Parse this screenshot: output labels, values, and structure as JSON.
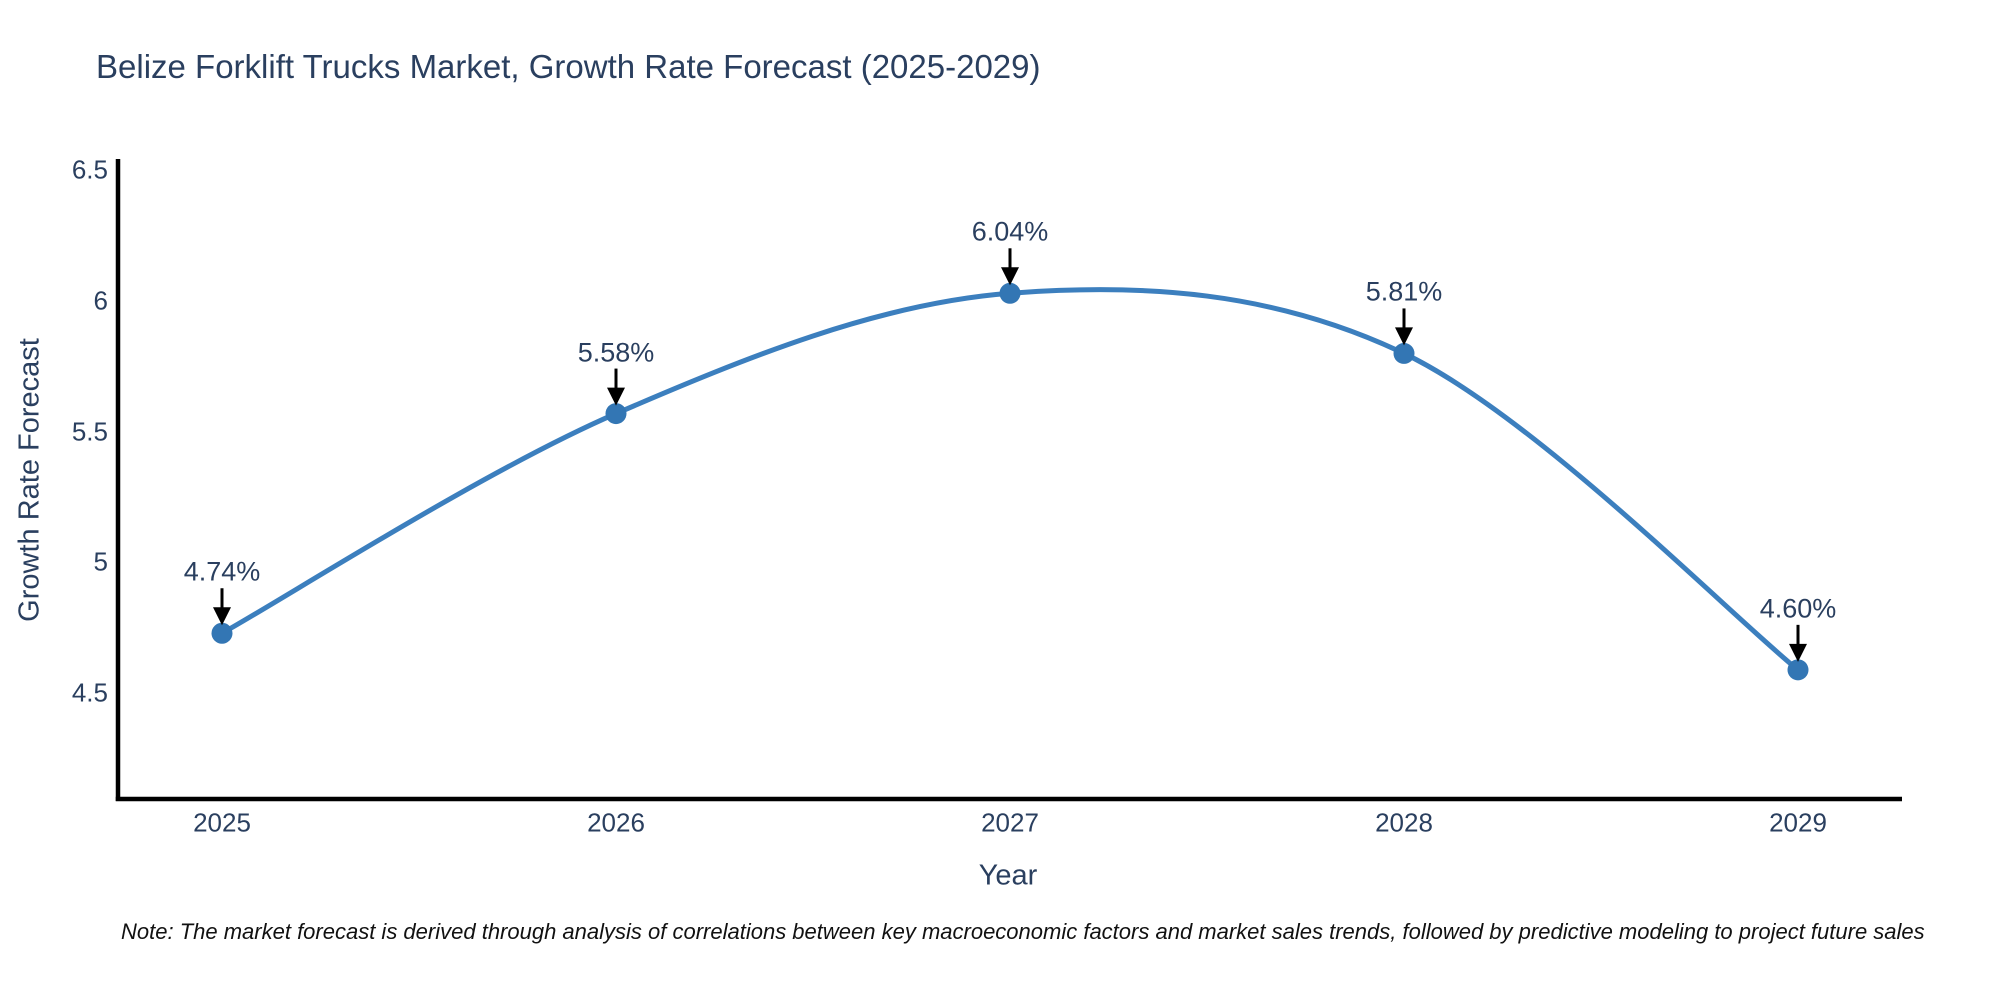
{
  "title": "Belize Forklift Trucks Market, Growth Rate Forecast (2025-2029)",
  "note": "Note: The market forecast is derived through analysis of correlations between key macroeconomic factors and market sales trends, followed by predictive modeling to project future sales",
  "chart_data": {
    "type": "line",
    "line_shape": "spline",
    "title": "Belize Forklift Trucks Market, Growth Rate Forecast (2025-2029)",
    "xlabel": "Year",
    "ylabel": "Growth Rate Forecast",
    "x": [
      2025,
      2026,
      2027,
      2028,
      2029
    ],
    "categories": [
      "2025",
      "2026",
      "2027",
      "2028",
      "2029"
    ],
    "values": [
      4.74,
      5.58,
      6.04,
      5.81,
      4.6
    ],
    "point_labels": [
      "4.74%",
      "5.58%",
      "6.04%",
      "5.81%",
      "4.60%"
    ],
    "yticks": [
      6.5,
      6,
      5.5,
      5,
      4.5
    ],
    "ytick_labels": [
      "6.5",
      "6",
      "5.5",
      "5",
      "4.5"
    ],
    "ylim": [
      4.09,
      6.54
    ],
    "grid": false,
    "legend": "none",
    "annotations": "value labels above each point with downward black arrows",
    "colors": {
      "line": "#3c7fbe",
      "marker": "#3376b4",
      "axis_line": "#000000",
      "text": "#2a3f5f",
      "arrow": "#000000",
      "note_text": "#111111",
      "background": "#ffffff"
    }
  }
}
